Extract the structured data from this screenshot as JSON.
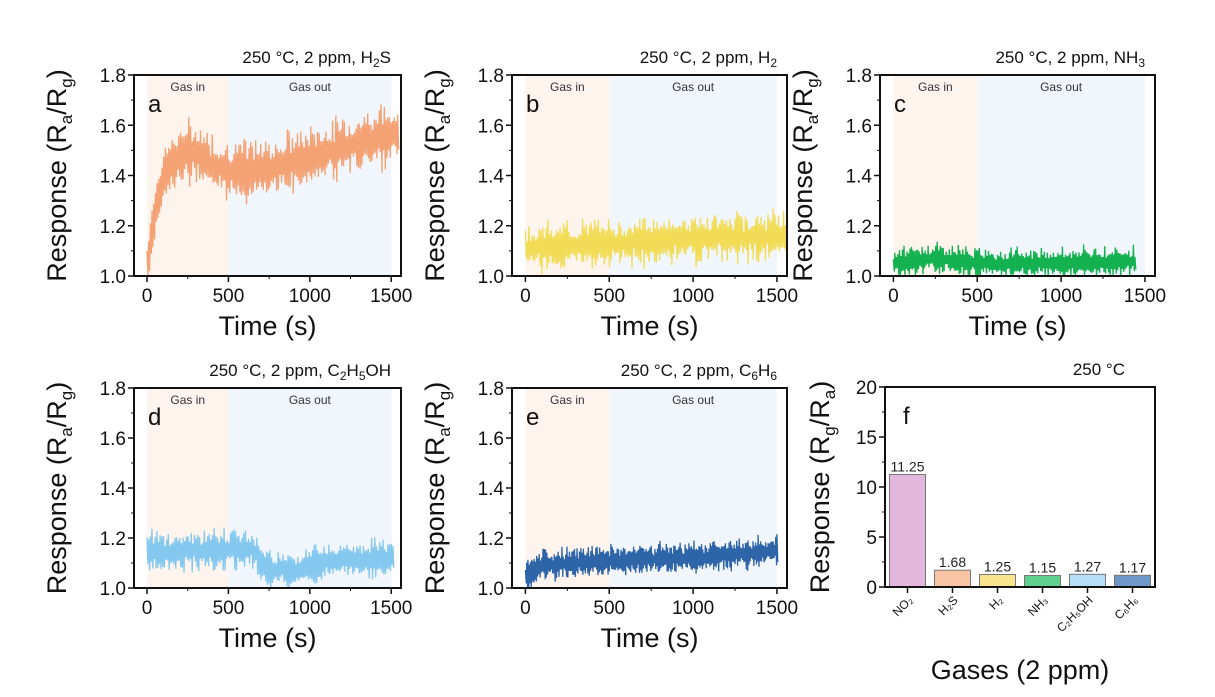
{
  "chart_data": [
    {
      "id": "a",
      "type": "line",
      "letter": "a",
      "title": "250 °C, 2 ppm,  H₂S",
      "xlabel": "Time (s)",
      "ylabel": "Response (Rₐ/R_g)",
      "ylabel_parts": [
        "Response (R",
        "a",
        "/R",
        "g",
        ")"
      ],
      "xlim": [
        -80,
        1560
      ],
      "ylim": [
        1.0,
        1.8
      ],
      "xticks": [
        0,
        500,
        1000,
        1500
      ],
      "yticks": [
        1.0,
        1.2,
        1.4,
        1.6,
        1.8
      ],
      "regions": [
        {
          "label": "Gas in",
          "from": 0,
          "to": 500,
          "color": "#fdf4ee"
        },
        {
          "label": "Gas out",
          "from": 500,
          "to": 1500,
          "color": "#f1f5fc"
        }
      ],
      "color": "#f4a274",
      "trend": [
        [
          0,
          1.02
        ],
        [
          30,
          1.2
        ],
        [
          100,
          1.4
        ],
        [
          200,
          1.48
        ],
        [
          300,
          1.5
        ],
        [
          400,
          1.44
        ],
        [
          500,
          1.42
        ],
        [
          700,
          1.42
        ],
        [
          1000,
          1.47
        ],
        [
          1300,
          1.53
        ],
        [
          1540,
          1.57
        ]
      ],
      "amplitude": 0.09,
      "n": 150
    },
    {
      "id": "b",
      "type": "line",
      "letter": "b",
      "title": "250 °C, 2 ppm, H₂",
      "xlabel": "Time (s)",
      "ylabel_parts": [
        "Response (R",
        "a",
        "/R",
        "g",
        ")"
      ],
      "xlim": [
        -80,
        1560
      ],
      "ylim": [
        1.0,
        1.8
      ],
      "xticks": [
        0,
        500,
        1000,
        1500
      ],
      "yticks": [
        1.0,
        1.2,
        1.4,
        1.6,
        1.8
      ],
      "regions": [
        {
          "label": "Gas in",
          "from": 0,
          "to": 500,
          "color": "#fdf4ee"
        },
        {
          "label": "Gas out",
          "from": 500,
          "to": 1500,
          "color": "#f1f5fc"
        }
      ],
      "color": "#f2dc55",
      "trend": [
        [
          0,
          1.11
        ],
        [
          500,
          1.13
        ],
        [
          1000,
          1.15
        ],
        [
          1550,
          1.16
        ]
      ],
      "amplitude": 0.07,
      "n": 150
    },
    {
      "id": "c",
      "type": "line",
      "letter": "c",
      "title": "250 °C, 2 ppm, NH₃",
      "xlabel": "Time (s)",
      "ylabel_parts": [
        "Response (R",
        "a",
        "/R",
        "g",
        ")"
      ],
      "xlim": [
        -80,
        1560
      ],
      "ylim": [
        1.0,
        1.8
      ],
      "xticks": [
        0,
        500,
        1000,
        1500
      ],
      "yticks": [
        1.0,
        1.2,
        1.4,
        1.6,
        1.8
      ],
      "regions": [
        {
          "label": "Gas in",
          "from": 0,
          "to": 500,
          "color": "#fdf4ee"
        },
        {
          "label": "Gas out",
          "from": 500,
          "to": 1500,
          "color": "#f1f5fc"
        }
      ],
      "color": "#13b14f",
      "trend": [
        [
          0,
          1.05
        ],
        [
          250,
          1.07
        ],
        [
          500,
          1.05
        ],
        [
          1000,
          1.05
        ],
        [
          1440,
          1.06
        ]
      ],
      "amplitude": 0.045,
      "n": 160
    },
    {
      "id": "d",
      "type": "line",
      "letter": "d",
      "title": "250 °C, 2 ppm, C₂H₅OH",
      "xlabel": "Time (s)",
      "ylabel_parts": [
        "Response (R",
        "a",
        "/R",
        "g",
        ")"
      ],
      "xlim": [
        -80,
        1560
      ],
      "ylim": [
        1.0,
        1.8
      ],
      "xticks": [
        0,
        500,
        1000,
        1500
      ],
      "yticks": [
        1.0,
        1.2,
        1.4,
        1.6,
        1.8
      ],
      "regions": [
        {
          "label": "Gas in",
          "from": 0,
          "to": 500,
          "color": "#fdf4ee"
        },
        {
          "label": "Gas out",
          "from": 500,
          "to": 1500,
          "color": "#f1f5fc"
        }
      ],
      "color": "#84c8f0",
      "trend": [
        [
          0,
          1.14
        ],
        [
          300,
          1.15
        ],
        [
          650,
          1.16
        ],
        [
          720,
          1.08
        ],
        [
          900,
          1.07
        ],
        [
          1100,
          1.11
        ],
        [
          1510,
          1.12
        ]
      ],
      "amplitude": 0.06,
      "n": 150
    },
    {
      "id": "e",
      "type": "line",
      "letter": "e",
      "title": "250 °C, 2 ppm, C₆H₆",
      "xlabel": "Time (s)",
      "ylabel_parts": [
        "Response (R",
        "a",
        "/R",
        "g",
        ")"
      ],
      "xlim": [
        -80,
        1560
      ],
      "ylim": [
        1.0,
        1.8
      ],
      "xticks": [
        0,
        500,
        1000,
        1500
      ],
      "yticks": [
        1.0,
        1.2,
        1.4,
        1.6,
        1.8
      ],
      "regions": [
        {
          "label": "Gas in",
          "from": 0,
          "to": 500,
          "color": "#fdf4ee"
        },
        {
          "label": "Gas out",
          "from": 500,
          "to": 1500,
          "color": "#f1f5fc"
        }
      ],
      "color": "#2e64a8",
      "trend": [
        [
          0,
          1.05
        ],
        [
          100,
          1.09
        ],
        [
          500,
          1.11
        ],
        [
          1000,
          1.12
        ],
        [
          1500,
          1.15
        ]
      ],
      "amplitude": 0.045,
      "n": 200
    },
    {
      "id": "f",
      "type": "bar",
      "letter": "f",
      "title": "250 °C",
      "xlabel": "Gases (2 ppm)",
      "ylabel_parts": [
        "Response (R",
        "g",
        "/R",
        "a",
        ")"
      ],
      "ylim": [
        0,
        20
      ],
      "yticks": [
        0,
        5,
        10,
        15,
        20
      ],
      "categories": [
        "NO₂",
        "H₂S",
        "H₂",
        "NH₃",
        "C₂H₅OH",
        "C₆H₆"
      ],
      "values": [
        11.25,
        1.68,
        1.25,
        1.15,
        1.27,
        1.17
      ],
      "value_labels": [
        "11.25",
        "1.68",
        "1.25",
        "1.15",
        "1.27",
        "1.17"
      ],
      "colors": [
        "#e3b6de",
        "#f9c4a4",
        "#f7e48d",
        "#5fd08e",
        "#b6dff7",
        "#6e98c8"
      ]
    }
  ]
}
